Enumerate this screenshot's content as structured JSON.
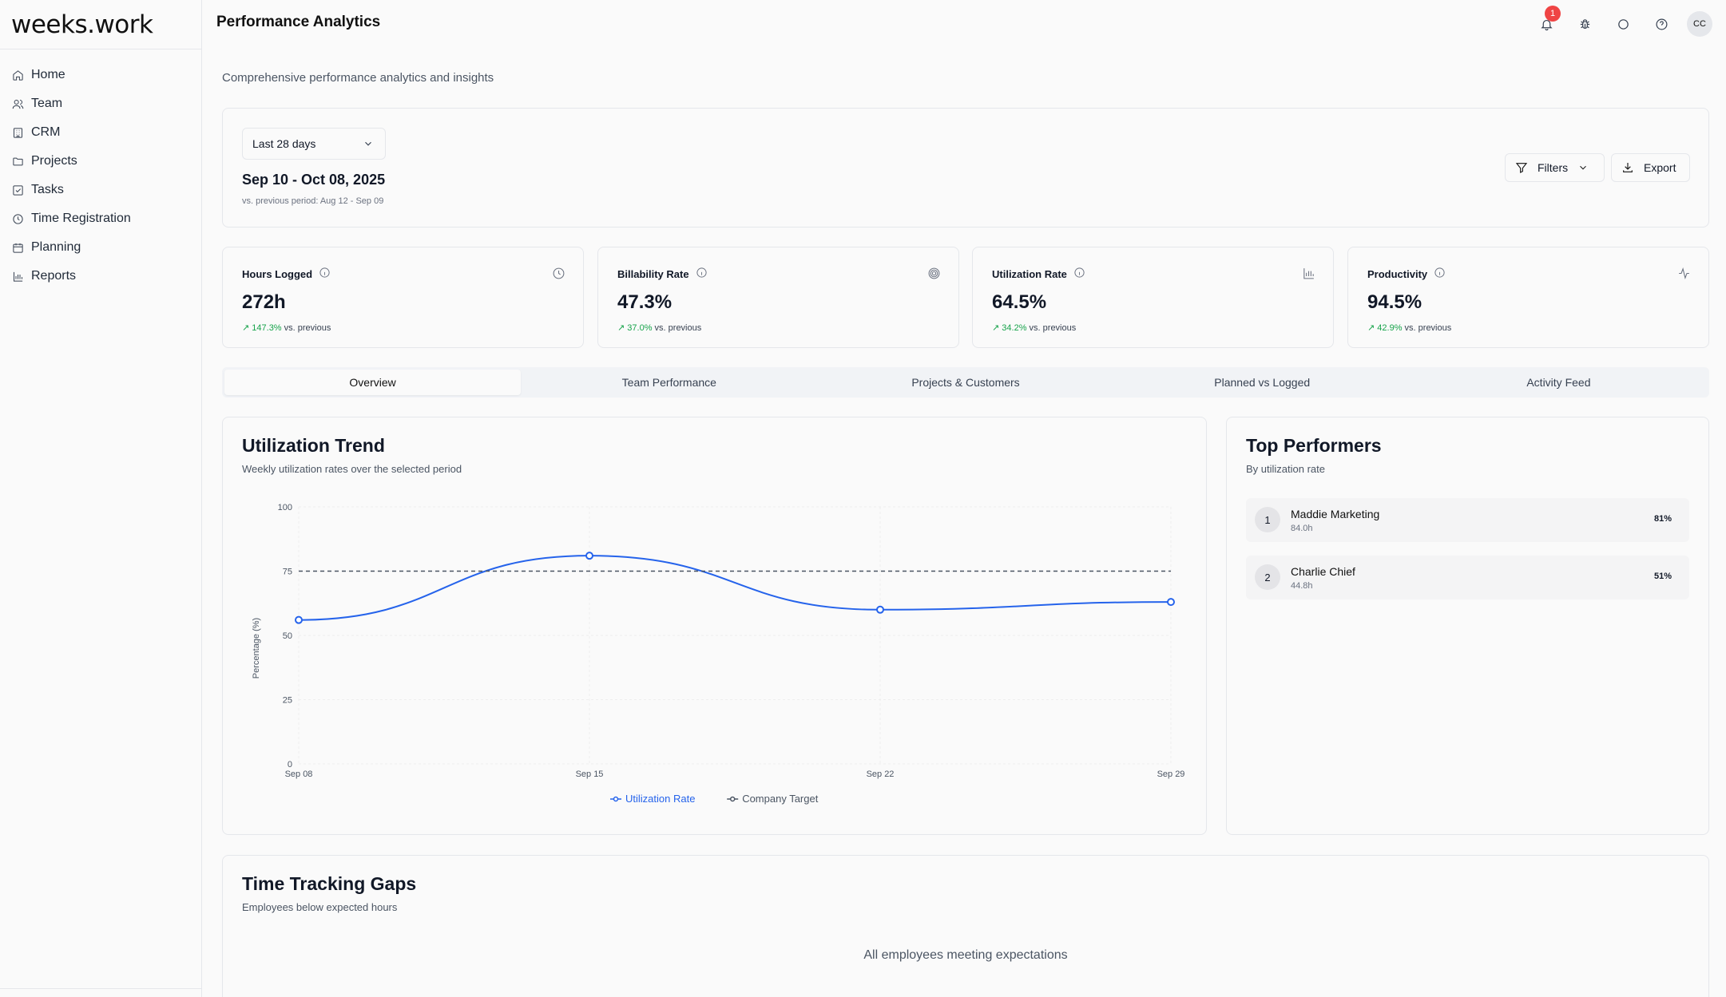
{
  "app": {
    "logo": "weeks.work"
  },
  "sidebar": {
    "items": [
      {
        "label": "Home",
        "icon": "home-icon"
      },
      {
        "label": "Team",
        "icon": "users-icon"
      },
      {
        "label": "CRM",
        "icon": "building-icon"
      },
      {
        "label": "Projects",
        "icon": "folder-icon"
      },
      {
        "label": "Tasks",
        "icon": "checkbox-icon"
      },
      {
        "label": "Time Registration",
        "icon": "clock-icon"
      },
      {
        "label": "Planning",
        "icon": "calendar-icon"
      },
      {
        "label": "Reports",
        "icon": "bar-chart-icon"
      }
    ]
  },
  "header": {
    "title": "Performance Analytics",
    "notification_count": "1",
    "avatar_initials": "CC"
  },
  "page": {
    "subtitle": "Comprehensive performance analytics and insights"
  },
  "period": {
    "selected": "Last 28 days",
    "range": "Sep 10 - Oct 08, 2025",
    "previous": "vs. previous period: Aug 12 - Sep 09",
    "filters_label": "Filters",
    "export_label": "Export"
  },
  "kpis": [
    {
      "label": "Hours Logged",
      "value": "272h",
      "delta": "147.3%",
      "delta_suffix": "vs. previous",
      "icon": "clock-icon"
    },
    {
      "label": "Billability Rate",
      "value": "47.3%",
      "delta": "37.0%",
      "delta_suffix": "vs. previous",
      "icon": "target-icon"
    },
    {
      "label": "Utilization Rate",
      "value": "64.5%",
      "delta": "34.2%",
      "delta_suffix": "vs. previous",
      "icon": "bar-chart-icon"
    },
    {
      "label": "Productivity",
      "value": "94.5%",
      "delta": "42.9%",
      "delta_suffix": "vs. previous",
      "icon": "activity-icon"
    }
  ],
  "tabs": [
    "Overview",
    "Team Performance",
    "Projects & Customers",
    "Planned vs Logged",
    "Activity Feed"
  ],
  "utilization": {
    "title": "Utilization Trend",
    "subtitle": "Weekly utilization rates over the selected period"
  },
  "chart_data": {
    "type": "line",
    "categories": [
      "Sep 08",
      "Sep 15",
      "Sep 22",
      "Sep 29"
    ],
    "series": [
      {
        "name": "Utilization Rate",
        "values": [
          56,
          81,
          60,
          63
        ],
        "color": "#2563eb",
        "style": "solid"
      },
      {
        "name": "Company Target",
        "values": [
          75,
          75,
          75,
          75
        ],
        "color": "#4b5563",
        "style": "dashed"
      }
    ],
    "ylabel": "Percentage (%)",
    "ylim": [
      0,
      100
    ],
    "yticks": [
      0,
      25,
      50,
      75,
      100
    ],
    "grid": true,
    "legend": "bottom-center"
  },
  "top_performers": {
    "title": "Top Performers",
    "subtitle": "By utilization rate",
    "items": [
      {
        "rank": "1",
        "name": "Maddie Marketing",
        "hours": "84.0h",
        "rate": "81%"
      },
      {
        "rank": "2",
        "name": "Charlie Chief",
        "hours": "44.8h",
        "rate": "51%"
      }
    ]
  },
  "gaps": {
    "title": "Time Tracking Gaps",
    "subtitle": "Employees below expected hours",
    "empty": "All employees meeting expectations"
  }
}
